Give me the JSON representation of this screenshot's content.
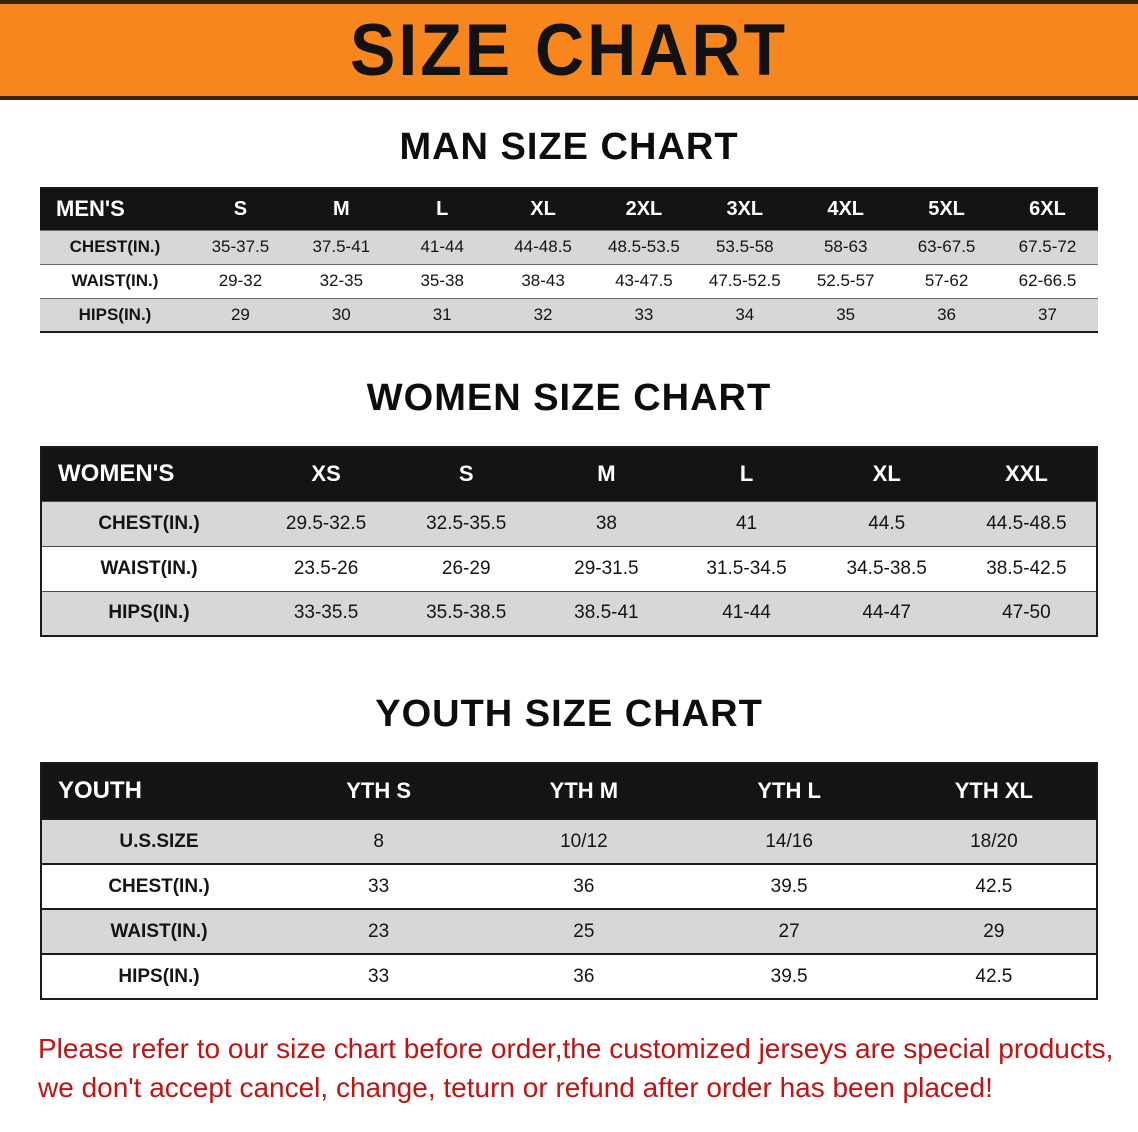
{
  "banner": {
    "title": "SIZE CHART"
  },
  "tables": {
    "men": {
      "title": "MAN SIZE CHART",
      "header": [
        "MEN'S",
        "S",
        "M",
        "L",
        "XL",
        "2XL",
        "3XL",
        "4XL",
        "5XL",
        "6XL"
      ],
      "rows": [
        [
          "CHEST(IN.)",
          "35-37.5",
          "37.5-41",
          "41-44",
          "44-48.5",
          "48.5-53.5",
          "53.5-58",
          "58-63",
          "63-67.5",
          "67.5-72"
        ],
        [
          "WAIST(IN.)",
          "29-32",
          "32-35",
          "35-38",
          "38-43",
          "43-47.5",
          "47.5-52.5",
          "52.5-57",
          "57-62",
          "62-66.5"
        ],
        [
          "HIPS(IN.)",
          "29",
          "30",
          "31",
          "32",
          "33",
          "34",
          "35",
          "36",
          "37"
        ]
      ]
    },
    "women": {
      "title": "WOMEN SIZE CHART",
      "header": [
        "WOMEN'S",
        "XS",
        "S",
        "M",
        "L",
        "XL",
        "XXL"
      ],
      "rows": [
        [
          "CHEST(IN.)",
          "29.5-32.5",
          "32.5-35.5",
          "38",
          "41",
          "44.5",
          "44.5-48.5"
        ],
        [
          "WAIST(IN.)",
          "23.5-26",
          "26-29",
          "29-31.5",
          "31.5-34.5",
          "34.5-38.5",
          "38.5-42.5"
        ],
        [
          "HIPS(IN.)",
          "33-35.5",
          "35.5-38.5",
          "38.5-41",
          "41-44",
          "44-47",
          "47-50"
        ]
      ]
    },
    "youth": {
      "title": "YOUTH SIZE CHART",
      "header": [
        "YOUTH",
        "YTH S",
        "YTH M",
        "YTH L",
        "YTH XL"
      ],
      "rows": [
        [
          "U.S.SIZE",
          "8",
          "10/12",
          "14/16",
          "18/20"
        ],
        [
          "CHEST(IN.)",
          "33",
          "36",
          "39.5",
          "42.5"
        ],
        [
          "WAIST(IN.)",
          "23",
          "25",
          "27",
          "29"
        ],
        [
          "HIPS(IN.)",
          "33",
          "36",
          "39.5",
          "42.5"
        ]
      ]
    }
  },
  "footer": {
    "line1": "Please refer to our size chart before order,the customized jerseys are special products,",
    "line2": "we don't accept cancel, change, teturn or refund after order has been placed!"
  },
  "colors": {
    "banner_orange": "#f6861d",
    "banner_border": "#3d2200",
    "header_black": "#141414",
    "row_gray": "#d7d7d7",
    "notice_red": "#c21212"
  }
}
